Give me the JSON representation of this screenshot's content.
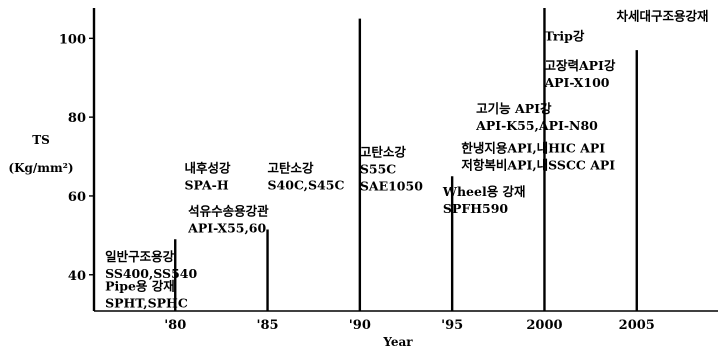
{
  "chart_data": {
    "type": "timeline",
    "ylabel": "TS",
    "ylabel_unit": "(Kg/mm²)",
    "xlabel": "Year",
    "y_ticks": [
      40,
      60,
      80,
      100
    ],
    "x_ticks": [
      {
        "year": 1980,
        "label": "'80"
      },
      {
        "year": 1985,
        "label": "'85"
      },
      {
        "year": 1990,
        "label": "'90"
      },
      {
        "year": 1995,
        "label": "'95"
      },
      {
        "year": 2000,
        "label": "2000"
      },
      {
        "year": 2005,
        "label": "2005"
      }
    ],
    "xlim": [
      1975.6,
      2009.4
    ],
    "ylim": [
      30.8,
      107.7
    ],
    "markers": [
      {
        "year": 1975.6,
        "ymax": 107.7
      },
      {
        "year": 1980,
        "ymax": 49
      },
      {
        "year": 1985,
        "ymax": 51.5
      },
      {
        "year": 1990,
        "ymax": 105
      },
      {
        "year": 1995,
        "ymax": 65
      },
      {
        "year": 2000,
        "ymax": 107.7
      },
      {
        "year": 2005,
        "ymax": 97
      }
    ],
    "annotations": [
      {
        "lines": [
          "일반구조용강",
          "SS400,SS540"
        ],
        "year": 1976.2,
        "ts": 43.5
      },
      {
        "lines": [
          "Pipe용 강재",
          "SPHT,SPHC"
        ],
        "year": 1976.2,
        "ts": 36
      },
      {
        "lines": [
          "석유수송용강관",
          "API-X55,60"
        ],
        "year": 1980.7,
        "ts": 55
      },
      {
        "lines": [
          "내후성강",
          "SPA-H"
        ],
        "year": 1980.5,
        "ts": 66
      },
      {
        "lines": [
          "고탄소강",
          "S40C,S45C"
        ],
        "year": 1985,
        "ts": 66
      },
      {
        "lines": [
          "고탄소강",
          "S55C",
          "SAE1050"
        ],
        "year": 1990,
        "ts": 70
      },
      {
        "lines": [
          "Wheel용 강재",
          "SPFH590"
        ],
        "year": 1994.5,
        "ts": 60
      },
      {
        "lines": [
          "한냉지용API,내HIC API",
          "저항복비API,내SSCC API"
        ],
        "year": 1995.5,
        "ts": 71
      },
      {
        "lines": [
          "고기능 API강",
          "API-K55,API-N80"
        ],
        "year": 1996.3,
        "ts": 81
      },
      {
        "lines": [
          "고장력API강",
          "API-X100"
        ],
        "year": 2000,
        "ts": 92
      },
      {
        "lines": [
          "Trip강"
        ],
        "year": 2000,
        "ts": 99.5
      },
      {
        "lines": [
          "차세대구조용강재"
        ],
        "year": 2003.9,
        "ts": 104.5
      }
    ]
  }
}
